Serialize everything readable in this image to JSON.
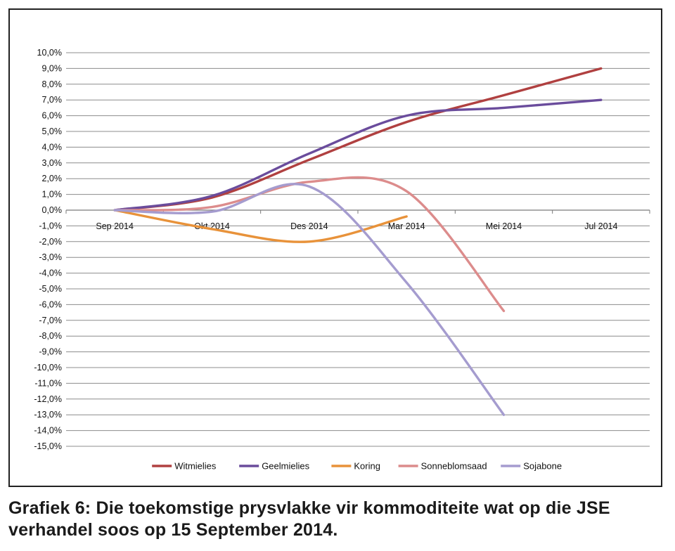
{
  "caption": "Grafiek 6: Die toekomstige prysvlakke vir kommoditeite wat op die JSE verhandel soos op 15 September 2014.",
  "chart_data": {
    "type": "line",
    "categories": [
      "Sep 2014",
      "Okt 2014",
      "Des 2014",
      "Mar 2014",
      "Mei 2014",
      "Jul 2014"
    ],
    "y_ticks": [
      "10,0%",
      "9,0%",
      "8,0%",
      "7,0%",
      "6,0%",
      "5,0%",
      "4,0%",
      "3,0%",
      "2,0%",
      "1,0%",
      "0,0%",
      "-1,0%",
      "-2,0%",
      "-3,0%",
      "-4,0%",
      "-5,0%",
      "-6,0%",
      "-7,0%",
      "-8,0%",
      "-9,0%",
      "-10,0%",
      "-11,0%",
      "-12,0%",
      "-13,0%",
      "-14,0%",
      "-15,0%"
    ],
    "ylim": [
      -15,
      10
    ],
    "grid": true,
    "legend_position": "bottom",
    "series": [
      {
        "name": "Witmielies",
        "color": "#b04040",
        "values": [
          0.0,
          0.8,
          3.2,
          5.6,
          7.3,
          9.0
        ]
      },
      {
        "name": "Geelmielies",
        "color": "#6a4c9c",
        "values": [
          0.0,
          0.9,
          3.6,
          6.0,
          6.5,
          7.0
        ]
      },
      {
        "name": "Koring",
        "color": "#e8923a",
        "values": [
          0.0,
          -1.2,
          -2.0,
          -0.4,
          null,
          null
        ]
      },
      {
        "name": "Sonneblomsaad",
        "color": "#dc8c8c",
        "values": [
          0.0,
          0.2,
          1.8,
          1.2,
          -6.4,
          null
        ]
      },
      {
        "name": "Sojabone",
        "color": "#a59ccf",
        "values": [
          0.0,
          -0.1,
          1.5,
          -4.6,
          -13.0,
          null
        ]
      }
    ]
  }
}
